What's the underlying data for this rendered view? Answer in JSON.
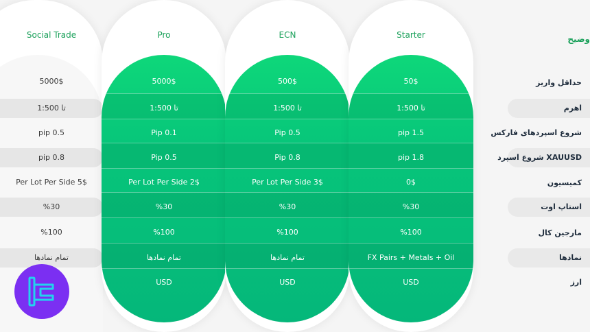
{
  "columns": [
    {
      "name": "Social Trade",
      "rows": [
        "5000$",
        "تا 1:500",
        "pip 0.5",
        "pip 0.8",
        "Per Lot Per Side 5$",
        "%30",
        "%100",
        "تمام نمادها",
        ""
      ]
    },
    {
      "name": "Pro",
      "rows": [
        "5000$",
        "تا 1:500",
        "Pip 0.1",
        "Pip 0.5",
        "Per Lot Per Side 2$",
        "%30",
        "%100",
        "تمام نمادها",
        "USD"
      ]
    },
    {
      "name": "ECN",
      "rows": [
        "500$",
        "تا 1:500",
        "Pip 0.5",
        "Pip 0.8",
        "Per Lot Per Side 3$",
        "%30",
        "%100",
        "تمام نمادها",
        "USD"
      ]
    },
    {
      "name": "Starter",
      "rows": [
        "50$",
        "تا 1:500",
        "pip 1.5",
        "pip 1.8",
        "0$",
        "%30",
        "%100",
        "FX Pairs + Metals + Oil",
        "USD"
      ]
    }
  ],
  "labels": {
    "title": "وضیح",
    "items": [
      "حداقل واریز",
      "اهرم",
      "شروع اسپردهای فارکس",
      "شروع اسپرد XAUUSD",
      "کمیسیون",
      "استاپ اوت",
      "مارجین کال",
      "نمادها",
      "ارز"
    ]
  },
  "colors": {
    "accent_green": "#0ed77a",
    "header_green": "#1aa05a",
    "logo_purple": "#7b2ff2",
    "logo_cyan": "#22d3ee"
  },
  "icons": {
    "logo": "tradingfinder-logo-icon"
  }
}
